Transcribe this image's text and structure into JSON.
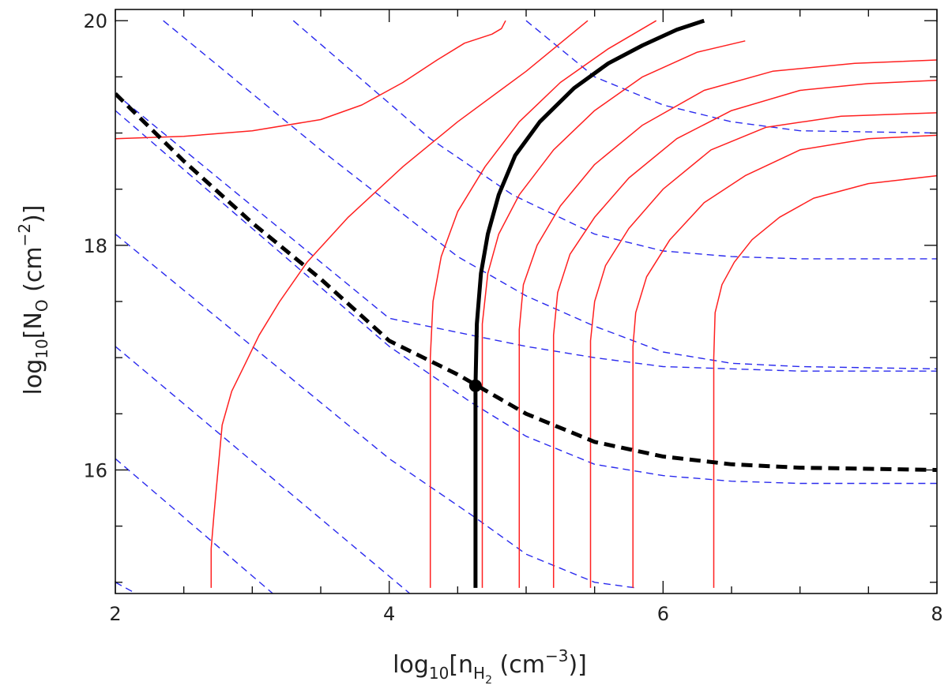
{
  "chart_data": {
    "type": "line",
    "xlabel": {
      "prefix": "log",
      "sub": "10",
      "open": "[n",
      "nsub": "H",
      "nsub2": "2",
      "unit": " (cm",
      "exp": "−3",
      "close": ")]"
    },
    "ylabel": {
      "prefix": "log",
      "sub": "10",
      "open": "[N",
      "nsub": "O",
      "unit": " (cm",
      "exp": "−2",
      "close": ")]"
    },
    "xlim": [
      2,
      8
    ],
    "ylim": [
      14.9,
      20.1
    ],
    "xticks": [
      "2",
      "4",
      "6",
      "8"
    ],
    "yticks": [
      "16",
      "18",
      "20"
    ],
    "colors": {
      "red": "#ff2020",
      "blue": "#2a2aee",
      "black": "#000000"
    },
    "marker": {
      "x": 4.63,
      "y": 16.75
    },
    "series": [
      {
        "style": "red-solid",
        "points": [
          [
            2.0,
            18.95
          ],
          [
            2.5,
            18.97
          ],
          [
            3.0,
            19.02
          ],
          [
            3.5,
            19.12
          ],
          [
            3.8,
            19.25
          ],
          [
            4.1,
            19.45
          ],
          [
            4.35,
            19.65
          ],
          [
            4.55,
            19.8
          ],
          [
            4.75,
            19.88
          ],
          [
            4.82,
            19.93
          ],
          [
            4.85,
            20.0
          ]
        ]
      },
      {
        "style": "red-solid",
        "points": [
          [
            2.7,
            14.95
          ],
          [
            2.7,
            15.3
          ],
          [
            2.72,
            15.6
          ],
          [
            2.75,
            16.0
          ],
          [
            2.78,
            16.4
          ],
          [
            2.85,
            16.7
          ],
          [
            2.95,
            16.95
          ],
          [
            3.05,
            17.2
          ],
          [
            3.2,
            17.5
          ],
          [
            3.4,
            17.85
          ],
          [
            3.7,
            18.25
          ],
          [
            4.1,
            18.7
          ],
          [
            4.5,
            19.1
          ],
          [
            5.0,
            19.55
          ],
          [
            5.45,
            20.0
          ]
        ]
      },
      {
        "style": "red-solid",
        "points": [
          [
            4.3,
            14.95
          ],
          [
            4.3,
            16.5
          ],
          [
            4.3,
            17.0
          ],
          [
            4.32,
            17.5
          ],
          [
            4.38,
            17.9
          ],
          [
            4.5,
            18.3
          ],
          [
            4.7,
            18.7
          ],
          [
            4.95,
            19.1
          ],
          [
            5.25,
            19.45
          ],
          [
            5.6,
            19.75
          ],
          [
            5.95,
            20.0
          ]
        ]
      },
      {
        "style": "red-solid",
        "points": [
          [
            4.68,
            14.95
          ],
          [
            4.68,
            16.5
          ],
          [
            4.68,
            17.3
          ],
          [
            4.72,
            17.75
          ],
          [
            4.8,
            18.1
          ],
          [
            4.95,
            18.45
          ],
          [
            5.2,
            18.85
          ],
          [
            5.5,
            19.2
          ],
          [
            5.85,
            19.5
          ],
          [
            6.25,
            19.72
          ],
          [
            6.6,
            19.82
          ]
        ]
      },
      {
        "style": "red-solid",
        "points": [
          [
            4.95,
            14.95
          ],
          [
            4.95,
            16.5
          ],
          [
            4.95,
            17.25
          ],
          [
            4.98,
            17.65
          ],
          [
            5.08,
            18.0
          ],
          [
            5.25,
            18.35
          ],
          [
            5.5,
            18.72
          ],
          [
            5.85,
            19.07
          ],
          [
            6.3,
            19.38
          ],
          [
            6.8,
            19.55
          ],
          [
            7.4,
            19.62
          ],
          [
            8.0,
            19.65
          ]
        ]
      },
      {
        "style": "red-solid",
        "points": [
          [
            5.2,
            14.95
          ],
          [
            5.2,
            16.5
          ],
          [
            5.2,
            17.2
          ],
          [
            5.23,
            17.58
          ],
          [
            5.32,
            17.92
          ],
          [
            5.5,
            18.25
          ],
          [
            5.75,
            18.6
          ],
          [
            6.1,
            18.95
          ],
          [
            6.5,
            19.2
          ],
          [
            7.0,
            19.38
          ],
          [
            7.5,
            19.44
          ],
          [
            8.0,
            19.47
          ]
        ]
      },
      {
        "style": "red-solid",
        "points": [
          [
            5.47,
            14.95
          ],
          [
            5.47,
            16.5
          ],
          [
            5.47,
            17.15
          ],
          [
            5.5,
            17.5
          ],
          [
            5.58,
            17.82
          ],
          [
            5.75,
            18.15
          ],
          [
            6.0,
            18.5
          ],
          [
            6.35,
            18.85
          ],
          [
            6.75,
            19.05
          ],
          [
            7.3,
            19.15
          ],
          [
            8.0,
            19.18
          ]
        ]
      },
      {
        "style": "red-solid",
        "points": [
          [
            5.78,
            14.95
          ],
          [
            5.78,
            16.5
          ],
          [
            5.78,
            17.1
          ],
          [
            5.8,
            17.4
          ],
          [
            5.88,
            17.72
          ],
          [
            6.05,
            18.05
          ],
          [
            6.3,
            18.38
          ],
          [
            6.6,
            18.62
          ],
          [
            7.0,
            18.85
          ],
          [
            7.5,
            18.95
          ],
          [
            8.0,
            18.98
          ]
        ]
      },
      {
        "style": "red-solid",
        "points": [
          [
            6.37,
            14.95
          ],
          [
            6.37,
            16.5
          ],
          [
            6.37,
            17.0
          ],
          [
            6.38,
            17.4
          ],
          [
            6.43,
            17.65
          ],
          [
            6.52,
            17.85
          ],
          [
            6.65,
            18.05
          ],
          [
            6.85,
            18.25
          ],
          [
            7.1,
            18.42
          ],
          [
            7.5,
            18.55
          ],
          [
            8.0,
            18.62
          ]
        ]
      },
      {
        "style": "black-solid",
        "points": [
          [
            4.63,
            14.95
          ],
          [
            4.63,
            16.0
          ],
          [
            4.63,
            16.75
          ],
          [
            4.64,
            17.3
          ],
          [
            4.67,
            17.75
          ],
          [
            4.72,
            18.1
          ],
          [
            4.8,
            18.45
          ],
          [
            4.92,
            18.8
          ],
          [
            5.1,
            19.1
          ],
          [
            5.35,
            19.4
          ],
          [
            5.6,
            19.62
          ],
          [
            5.85,
            19.78
          ],
          [
            6.1,
            19.92
          ],
          [
            6.3,
            20.0
          ]
        ]
      },
      {
        "style": "black-dashed",
        "points": [
          [
            2.0,
            19.35
          ],
          [
            2.5,
            18.75
          ],
          [
            3.0,
            18.2
          ],
          [
            3.5,
            17.7
          ],
          [
            4.0,
            17.15
          ],
          [
            4.5,
            16.85
          ],
          [
            5.0,
            16.5
          ],
          [
            5.5,
            16.25
          ],
          [
            6.0,
            16.12
          ],
          [
            6.5,
            16.05
          ],
          [
            7.0,
            16.02
          ],
          [
            7.5,
            16.01
          ],
          [
            8.0,
            16.0
          ]
        ]
      },
      {
        "style": "blue-dashed",
        "points": [
          [
            2.0,
            15.0
          ],
          [
            2.15,
            14.9
          ]
        ]
      },
      {
        "style": "blue-dashed",
        "points": [
          [
            2.0,
            16.1
          ],
          [
            3.15,
            14.9
          ]
        ]
      },
      {
        "style": "blue-dashed",
        "points": [
          [
            2.0,
            17.1
          ],
          [
            4.15,
            14.9
          ]
        ]
      },
      {
        "style": "blue-dashed",
        "points": [
          [
            2.0,
            18.1
          ],
          [
            3.0,
            17.1
          ],
          [
            4.0,
            16.1
          ],
          [
            4.6,
            15.6
          ],
          [
            5.0,
            15.25
          ],
          [
            5.5,
            15.0
          ],
          [
            5.8,
            14.95
          ]
        ]
      },
      {
        "style": "blue-dashed",
        "points": [
          [
            2.0,
            19.2
          ],
          [
            3.0,
            18.15
          ],
          [
            4.0,
            17.1
          ],
          [
            4.6,
            16.6
          ],
          [
            5.0,
            16.3
          ],
          [
            5.5,
            16.05
          ],
          [
            6.0,
            15.95
          ],
          [
            6.5,
            15.9
          ],
          [
            7.0,
            15.88
          ],
          [
            8.0,
            15.88
          ]
        ]
      },
      {
        "style": "blue-dashed",
        "points": [
          [
            2.0,
            19.35
          ],
          [
            3.0,
            18.35
          ],
          [
            4.0,
            17.35
          ],
          [
            4.6,
            17.2
          ],
          [
            5.0,
            17.1
          ],
          [
            5.5,
            17.0
          ],
          [
            6.0,
            16.92
          ],
          [
            7.0,
            16.88
          ],
          [
            8.0,
            16.88
          ]
        ]
      },
      {
        "style": "blue-dashed",
        "points": [
          [
            2.35,
            20.0
          ],
          [
            3.5,
            18.85
          ],
          [
            4.5,
            17.9
          ],
          [
            5.0,
            17.55
          ],
          [
            5.5,
            17.28
          ],
          [
            6.0,
            17.05
          ],
          [
            6.5,
            16.95
          ],
          [
            7.0,
            16.92
          ],
          [
            8.0,
            16.9
          ]
        ]
      },
      {
        "style": "blue-dashed",
        "points": [
          [
            3.3,
            20.0
          ],
          [
            4.3,
            18.95
          ],
          [
            4.9,
            18.45
          ],
          [
            5.5,
            18.1
          ],
          [
            6.0,
            17.95
          ],
          [
            6.5,
            17.9
          ],
          [
            7.0,
            17.88
          ],
          [
            8.0,
            17.88
          ]
        ]
      },
      {
        "style": "blue-dashed",
        "points": [
          [
            5.0,
            20.0
          ],
          [
            5.5,
            19.5
          ],
          [
            6.0,
            19.25
          ],
          [
            6.5,
            19.1
          ],
          [
            7.0,
            19.02
          ],
          [
            8.0,
            19.0
          ]
        ]
      }
    ]
  }
}
